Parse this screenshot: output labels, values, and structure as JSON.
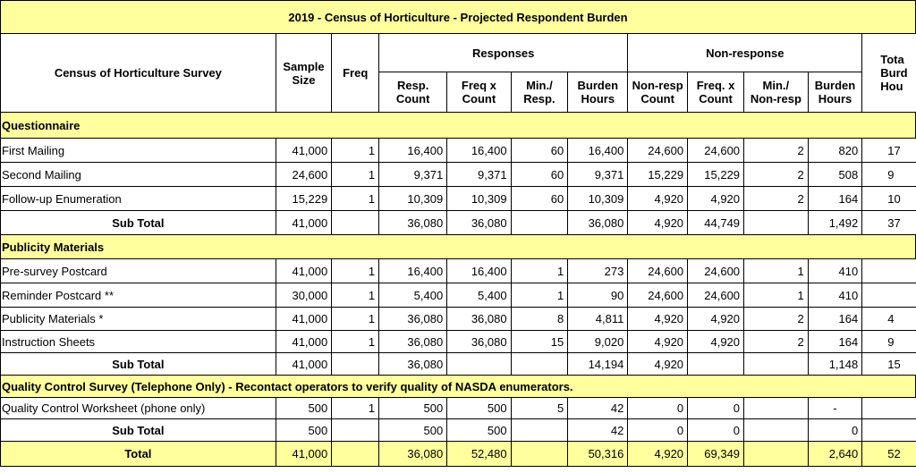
{
  "title": "2019 - Census of Horticulture - Projected Respondent Burden",
  "header": {
    "survey": "Census of Horticulture Survey",
    "sample_size": "Sample Size",
    "freq": "Freq",
    "responses": "Responses",
    "nonresponse": "Non-response",
    "total": "Tota Burd Hou"
  },
  "subheaders": [
    "Resp. Count",
    "Freq x Count",
    "Min./ Resp.",
    "Burden Hours",
    "Non-resp Count",
    "Freq. x Count",
    "Min./ Non-resp",
    "Burden Hours"
  ],
  "sections": [
    {
      "title": "Questionnaire",
      "rows": [
        [
          "First Mailing",
          "41,000",
          "1",
          "16,400",
          "16,400",
          "60",
          "16,400",
          "24,600",
          "24,600",
          "2",
          "820",
          "17"
        ],
        [
          "Second Mailing",
          "24,600",
          "1",
          "9,371",
          "9,371",
          "60",
          "9,371",
          "15,229",
          "15,229",
          "2",
          "508",
          "9"
        ],
        [
          "Follow-up Enumeration",
          "15,229",
          "1",
          "10,309",
          "10,309",
          "60",
          "10,309",
          "4,920",
          "4,920",
          "2",
          "164",
          "10"
        ]
      ],
      "subtotal": [
        "Sub Total",
        "41,000",
        null,
        "36,080",
        "36,080",
        null,
        "36,080",
        "4,920",
        "44,749",
        null,
        "1,492",
        "37"
      ]
    },
    {
      "title": "Publicity Materials",
      "rows": [
        [
          "Pre-survey Postcard",
          "41,000",
          "1",
          "16,400",
          "16,400",
          "1",
          "273",
          "24,600",
          "24,600",
          "1",
          "410",
          null
        ],
        [
          "Reminder Postcard **",
          "30,000",
          "1",
          "5,400",
          "5,400",
          "1",
          "90",
          "24,600",
          "24,600",
          "1",
          "410",
          null
        ],
        [
          "Publicity Materials *",
          "41,000",
          "1",
          "36,080",
          "36,080",
          "8",
          "4,811",
          "4,920",
          "4,920",
          "2",
          "164",
          "4"
        ],
        [
          "Instruction Sheets",
          "41,000",
          "1",
          "36,080",
          "36,080",
          "15",
          "9,020",
          "4,920",
          "4,920",
          "2",
          "164",
          "9"
        ]
      ],
      "subtotal": [
        "Sub Total",
        "41,000",
        null,
        "36,080",
        null,
        null,
        "14,194",
        "4,920",
        null,
        null,
        "1,148",
        "15"
      ]
    },
    {
      "title": "Quality Control Survey (Telephone Only) - Recontact operators to verify quality of NASDA enumerators.",
      "rows": [
        [
          "Quality Control Worksheet (phone only)",
          "500",
          "1",
          "500",
          "500",
          "5",
          "42",
          "0",
          "0",
          null,
          "-",
          null
        ]
      ],
      "subtotal": [
        "Sub Total",
        "500",
        null,
        "500",
        "500",
        null,
        "42",
        "0",
        "0",
        null,
        "0",
        null
      ]
    }
  ],
  "total": [
    "Total",
    "41,000",
    null,
    "36,080",
    "52,480",
    null,
    "50,316",
    "4,920",
    "69,349",
    null,
    "2,640",
    "52"
  ]
}
